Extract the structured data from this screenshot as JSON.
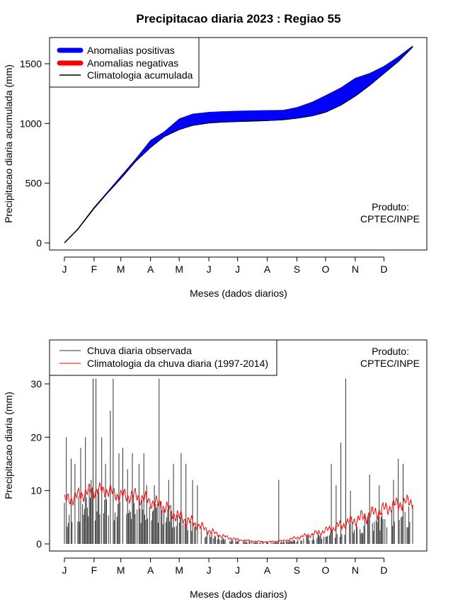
{
  "title": "Precipitacao diaria 2023 : Regiao 55",
  "colors": {
    "positive": "#0000ff",
    "negative": "#ff0000",
    "clim_line": "#000000",
    "obs_line": "#333333",
    "clim_daily": "#ff0000"
  },
  "months": [
    "J",
    "F",
    "M",
    "A",
    "M",
    "J",
    "J",
    "A",
    "S",
    "O",
    "N",
    "D"
  ],
  "month_start_days": [
    1,
    32,
    60,
    91,
    121,
    152,
    182,
    213,
    244,
    274,
    305,
    335
  ],
  "chart_data": [
    {
      "type": "area",
      "name": "cumulative",
      "xlabel": "Meses (dados diarios)",
      "ylabel": "Precipitacao diaria acumulada (mm)",
      "xlim": [
        1,
        365
      ],
      "ylim": [
        0,
        1650
      ],
      "yticks": [
        0,
        500,
        1000,
        1500
      ],
      "legend_position": "top-left",
      "legend": [
        "Anomalias positivas",
        "Anomalias negativas",
        "Climatologia acumulada"
      ],
      "annotation": [
        "Produto:",
        "CPTEC/INPE"
      ],
      "observed_cumulative": {
        "days": [
          1,
          15,
          32,
          45,
          60,
          75,
          91,
          105,
          121,
          135,
          152,
          165,
          182,
          200,
          213,
          230,
          244,
          260,
          274,
          290,
          305,
          320,
          335,
          350,
          365
        ],
        "values": [
          0,
          120,
          300,
          420,
          560,
          700,
          860,
          930,
          1040,
          1080,
          1095,
          1100,
          1105,
          1108,
          1110,
          1112,
          1135,
          1180,
          1235,
          1300,
          1380,
          1420,
          1480,
          1560,
          1650
        ]
      },
      "climatology_cumulative": {
        "days": [
          1,
          15,
          32,
          45,
          60,
          75,
          91,
          105,
          121,
          135,
          152,
          165,
          182,
          200,
          213,
          230,
          244,
          260,
          274,
          290,
          305,
          320,
          335,
          350,
          365
        ],
        "values": [
          0,
          115,
          290,
          410,
          540,
          680,
          800,
          890,
          950,
          985,
          1005,
          1012,
          1017,
          1021,
          1025,
          1032,
          1045,
          1065,
          1095,
          1155,
          1230,
          1320,
          1420,
          1520,
          1640
        ]
      }
    },
    {
      "type": "line",
      "name": "daily",
      "xlabel": "Meses (dados diarios)",
      "ylabel": "Precipitacao diaria (mm)",
      "xlim": [
        1,
        365
      ],
      "ylim": [
        0,
        32
      ],
      "yticks": [
        0,
        10,
        20,
        30
      ],
      "legend_position": "top-left",
      "legend": [
        "Chuva diaria observada",
        "Climatologia da chuva diaria (1997-2014)"
      ],
      "annotation": [
        "Produto:",
        "CPTEC/INPE"
      ],
      "observed_daily_peaks": {
        "days": [
          3,
          8,
          12,
          18,
          23,
          29,
          31,
          34,
          40,
          44,
          49,
          52,
          58,
          62,
          67,
          72,
          79,
          84,
          87,
          95,
          100,
          102,
          110,
          115,
          123,
          128,
          135,
          140,
          225,
          280,
          285,
          290,
          295,
          300,
          320,
          330,
          345,
          350,
          355
        ],
        "values": [
          20,
          16,
          15,
          18,
          20,
          12,
          31,
          31,
          20,
          15,
          25,
          31,
          17,
          18,
          14,
          17,
          15,
          17,
          11,
          11,
          31,
          8,
          12,
          15,
          17,
          15,
          12,
          11,
          12,
          15,
          11,
          19,
          31,
          10,
          13,
          11,
          12,
          16,
          15
        ]
      },
      "observed_daily_base": 3,
      "climatology_daily": {
        "days": [
          1,
          15,
          30,
          45,
          60,
          75,
          91,
          105,
          121,
          135,
          152,
          165,
          182,
          200,
          213,
          230,
          244,
          260,
          274,
          290,
          305,
          320,
          335,
          350,
          365
        ],
        "values": [
          8,
          9,
          10,
          10,
          9,
          9,
          8,
          7,
          5,
          4,
          2.5,
          1.5,
          0.8,
          0.5,
          0.4,
          0.6,
          1.2,
          1.8,
          2.5,
          3.5,
          4.5,
          5.5,
          6.5,
          7.5,
          8
        ]
      }
    }
  ]
}
